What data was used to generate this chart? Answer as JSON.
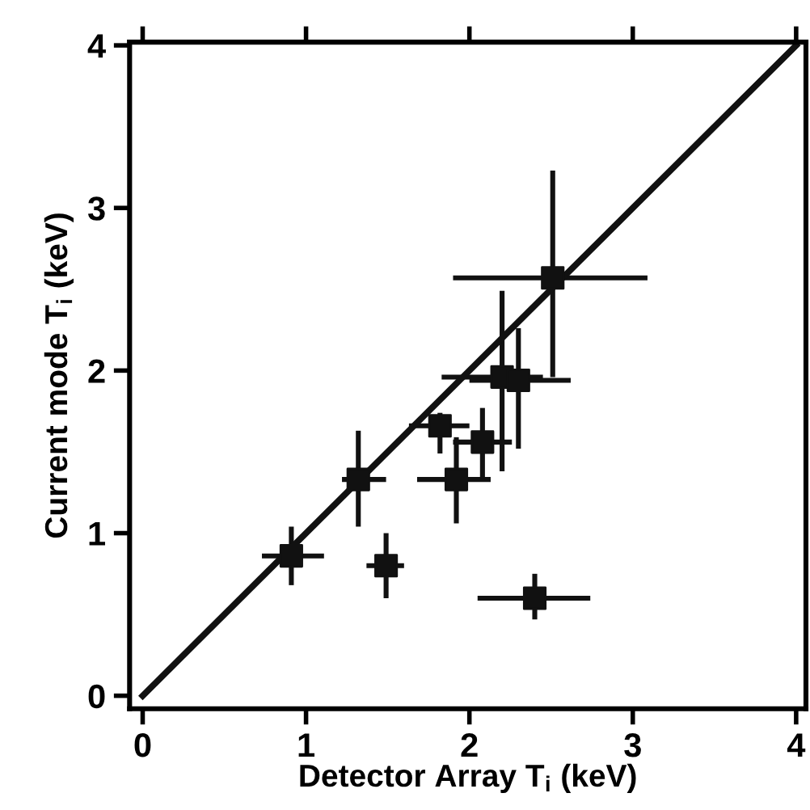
{
  "chart_data": {
    "type": "scatter",
    "xlabel": "Detector Array T$_{i}$ (keV)",
    "ylabel": "Current mode T$_{i}$ (keV)",
    "xlim": [
      -0.08,
      4.06
    ],
    "ylim": [
      -0.08,
      4.02
    ],
    "xticks": [
      0,
      1,
      2,
      3,
      4
    ],
    "yticks": [
      0,
      1,
      2,
      3,
      4
    ],
    "grid": false,
    "legend": false,
    "series": [
      {
        "marker": "square",
        "color": "#111111",
        "x": [
          0.91,
          1.32,
          1.49,
          1.82,
          1.92,
          2.08,
          2.2,
          2.3,
          2.4,
          2.51
        ],
        "values": [
          0.86,
          1.33,
          0.8,
          1.66,
          1.33,
          1.56,
          1.96,
          1.94,
          0.6,
          2.57
        ],
        "errors": [
          [
            0.68,
            1.04
          ],
          [
            1.04,
            1.63
          ],
          [
            0.6,
            1.0
          ],
          [
            1.49,
            1.74
          ],
          [
            1.06,
            1.59
          ],
          [
            1.34,
            1.77
          ],
          [
            1.38,
            2.49
          ],
          [
            1.52,
            2.26
          ],
          [
            0.47,
            0.75
          ],
          [
            1.96,
            3.23
          ]
        ],
        "xerrors": [
          [
            0.73,
            1.11
          ],
          [
            1.22,
            1.49
          ],
          [
            1.37,
            1.6
          ],
          [
            1.63,
            2.0
          ],
          [
            1.68,
            2.13
          ],
          [
            1.9,
            2.26
          ],
          [
            1.83,
            2.45
          ],
          [
            2.0,
            2.62
          ],
          [
            2.05,
            2.74
          ],
          [
            1.9,
            3.09
          ]
        ]
      },
      {
        "type": "line",
        "color": "#111111",
        "x": [
          0,
          4
        ],
        "values": [
          0,
          4
        ],
        "marker": "none",
        "line_style": "solid"
      }
    ]
  }
}
